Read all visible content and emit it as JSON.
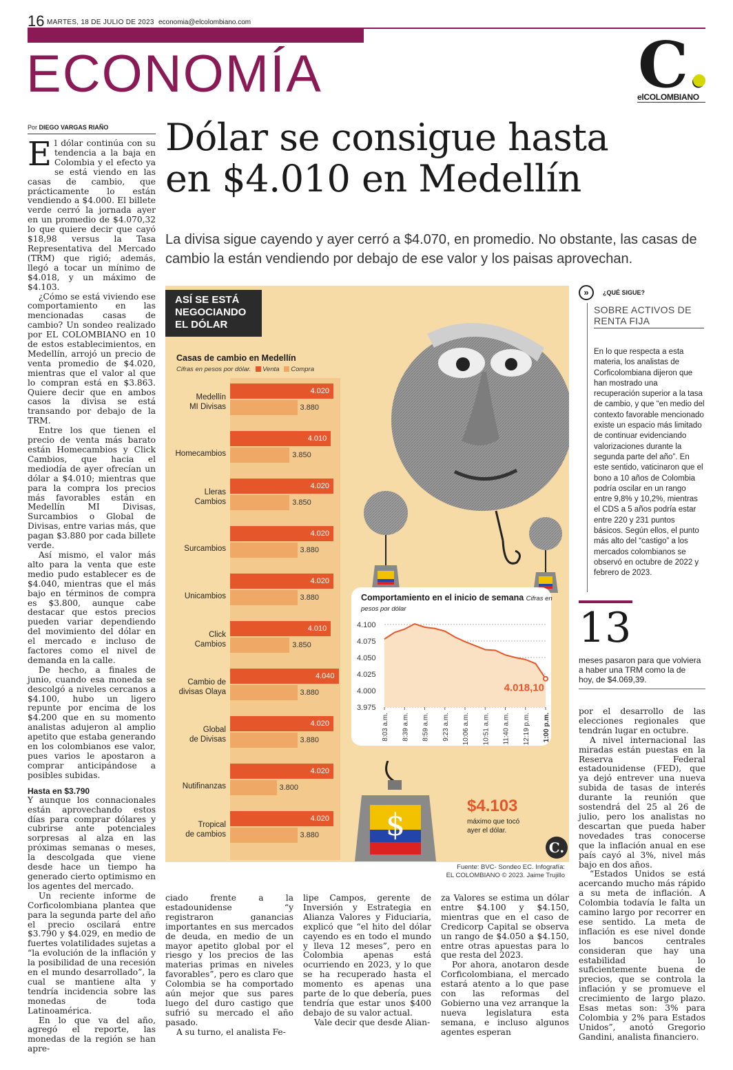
{
  "header": {
    "page_number": "16",
    "date": "MARTES, 18 DE JULIO DE 2023",
    "email": "economia@elcolombiano.com",
    "section": "ECONOMÍA",
    "logo_letter": "C.",
    "logo_text": "elCOLOMBIANO"
  },
  "article": {
    "byline_prefix": "Por",
    "byline_author": "DIEGO VARGAS RIAÑO",
    "headline_line1": "Dólar se consigue hasta",
    "headline_line2": "en $4.010 en Medellín",
    "deck": "La divisa sigue cayendo y ayer cerró a $4.070, en promedio. No obstante, las casas de cambio la están vendiendo por debajo de ese valor y los paisas aprovechan.",
    "col1_dropcap": "E",
    "col1_p1": "l dólar continúa con su tendencia a la baja en Colombia y el efecto ya se está viendo en las casas de cambio, que prácticamente lo están vendiendo a $4.000. El billete verde cerró la jornada ayer en un promedio de $4.070,32 lo que quiere decir que cayó $18,98 versus la Tasa Representativa del Mercado (TRM) que rigió; además, llegó a tocar un mínimo de $4.018, y un máximo de $4.103.",
    "col1_p2": "¿Cómo se está viviendo ese comportamiento en las mencionadas casas de cambio? Un sondeo realizado por EL COLOMBIANO en 10 de estos establecimientos, en Medellín, arrojó un precio de venta promedio de $4.020, mientras que el valor al que lo compran está en $3.863. Quiere decir que en ambos casos la divisa se está transando por debajo de la TRM.",
    "col1_p3": "Entre los que tienen el precio de venta más barato están Homecambios y Click Cambios, que hacia el mediodía de ayer ofrecían un dólar a $4.010; mientras que para la compra los precios más favorables están en Medellín MI Divisas, Surcambios o Global de Divisas, entre varias más, que pagan $3.880 por cada billete verde.",
    "col1_p4": "Así mismo, el valor más alto para la venta que este medio pudo establecer es de $4.040, mientras que el más bajo en términos de compra es $3.800, aunque cabe destacar que estos precios pueden variar dependiendo del movimiento del dólar en el mercado e incluso de factores como el nivel de demanda en la calle.",
    "col1_p5": "De hecho, a finales de junio, cuando esa moneda se descolgó a niveles cercanos a $4.100, hubo un ligero repunte por encima de los $4.200 que en su momento analistas adujeron al amplio apetito que estaba generando en los colombianos ese valor, pues varios le apostaron a comprar anticipándose a posibles subidas.",
    "subhead": "Hasta en $3.790",
    "col1_p6": "Y aunque los connacionales están aprovechando estos días para comprar dólares y cubrirse ante potenciales sorpresas al alza en las próximas semanas o meses, la descolgada que viene desde hace un tiempo ha generado cierto optimismo en los agentes del mercado.",
    "col1_p7": "Un reciente informe de Corficolombiana plantea que para la segunda parte del año el precio oscilará entre $3.790 y $4.029, en medio de fuertes volatilidades sujetas a “la evolución de la inflación y la posibilidad de una recesión en el mundo desarrollado”, la cual se mantiene alta y tendría incidencia sobre las monedas de toda Latinoamérica.",
    "col1_p8": "En lo que va del año, agregó el reporte, las monedas de la región se han apre-",
    "col2_p1": "ciado frente a la estadounidense “y registraron ganancias importantes en sus mercados de deuda, en medio de un mayor apetito global por el riesgo y los precios de las materias primas en niveles favorables”, pero es claro que Colombia se ha comportado aún mejor que sus pares luego del duro castigo que sufrió su mercado el año pasado.",
    "col2_p2": "A su turno, el analista Fe-",
    "col3_p1": "lipe Campos, gerente de Inversión y Estrategia en Alianza Valores y Fiduciaria, explicó que “el hito del dólar cayendo es en todo el mundo y lleva 12 meses”, pero en Colombia apenas está ocurriendo en 2023, y lo que se ha recuperado hasta el momento es apenas una parte de lo que debería, pues tendría que estar unos $400 debajo de su valor actual.",
    "col3_p2": "Vale decir que desde Alian-",
    "col4_p1": "za Valores se estima un dólar entre $4.100 y $4.150, mientras que en el caso de Credicorp Capital se observa un rango de $4.050 a $4.150, entre otras apuestas para lo que resta del 2023.",
    "col4_p2": "Por ahora, anotaron desde Corficolombiana, el mercado estará atento a lo que pase con las reformas del Gobierno una vez arranque la nueva legislatura esta semana, e incluso algunos agentes esperan",
    "col5_p1": "por el desarrollo de las elecciones regionales que tendrán lugar en octubre.",
    "col5_p2": "A nivel internacional las miradas están puestas en la Reserva Federal estadounidense (FED), que ya dejó entrever una nueva subida de tasas de interés durante la reunión que sostendrá del 25 al 26 de julio, pero los analistas no descartan que pueda haber novedades tras conocerse que la inflación anual en ese país cayó al 3%, nivel más bajo en dos años.",
    "col5_p3": "“Estados Unidos se está acercando mucho más rápido a su meta de inflación. A Colombia todavía le falta un camino largo por recorrer en ese sentido. La meta de inflación es ese nivel donde los bancos centrales consideran que hay una estabilidad lo suficientemente buena de precios, que se controla la inflación y se promueve el crecimiento de largo plazo. Esas metas son: 3% para Colombia y 2% para Estados Unidos”, anotó Gregorio Gandini, analista financiero."
  },
  "sidebar": {
    "label": "¿QUÉ SIGUE?",
    "title": "SOBRE ACTIVOS DE RENTA FIJA",
    "body": "En lo que respecta a esta materia, los analistas de Corficolombiana dijeron que han mostrado una recuperación superior a la tasa de cambio, y que “en medio del contexto favorable mencionado existe un espacio más limitado de continuar evidenciando valorizaciones durante la segunda parte del año”. En este sentido, vaticinaron que el bono a 10 años de Colombia podría oscilar en un rango entre 9,8% y 10,2%, mientras el CDS a 5 años podría estar entre 220 y 231 puntos básicos. Según ellos, el punto más alto del “castigo” a los mercados colombianos se observó en octubre de 2022 y febrero de 2023.",
    "big_number": "13",
    "big_number_text": "meses pasaron para que volviera a haber una TRM como la de hoy, de $4.069,39."
  },
  "infographic": {
    "banner": [
      "ASÍ SE ESTÁ",
      "NEGOCIANDO",
      "EL DÓLAR"
    ],
    "max_value": "$4.103",
    "max_label": [
      "máximo que tocó",
      "ayer el dólar."
    ],
    "badge": "C.",
    "source": [
      "Fuente: BVC- Sondeo EC. Infografía:",
      "EL COLOMBIANO © 2023. Jaime Trujillo"
    ],
    "colors": {
      "venta": "#e5572a",
      "compra": "#f0a866",
      "accent": "#8a1a55",
      "line": "#e5572a"
    }
  },
  "chart_data": [
    {
      "type": "bar",
      "title": "Casas de cambio en Medellín",
      "subtitle": "Cifras en pesos por dólar.",
      "legend": [
        "Venta",
        "Compra"
      ],
      "categories": [
        [
          "Medellín",
          "MI Divisas"
        ],
        [
          "Homecambios"
        ],
        [
          "Lleras",
          "Cambios"
        ],
        [
          "Surcambios"
        ],
        [
          "Unicambios"
        ],
        [
          "Click",
          "Cambios"
        ],
        [
          "Cambio de",
          "divisas Olaya"
        ],
        [
          "Global",
          "de Divisas"
        ],
        [
          "Nutifinanzas"
        ],
        [
          "Tropical",
          "de cambios"
        ]
      ],
      "series": [
        {
          "name": "Venta",
          "values": [
            4020,
            4010,
            4020,
            4020,
            4020,
            4010,
            4040,
            4020,
            4020,
            4020
          ],
          "labels": [
            "4.020",
            "4.010",
            "4.020",
            "4.020",
            "4.020",
            "4.010",
            "4.040",
            "4.020",
            "4.020",
            "4.020"
          ]
        },
        {
          "name": "Compra",
          "values": [
            3880,
            3850,
            3850,
            3880,
            3880,
            3850,
            3880,
            3880,
            3800,
            3880
          ],
          "labels": [
            "3.880",
            "3.850",
            "3.850",
            "3.880",
            "3.880",
            "3.850",
            "3.880",
            "3.880",
            "3.800",
            "3.880"
          ]
        }
      ]
    },
    {
      "type": "line",
      "title": "Comportamiento en el inicio de semana",
      "subtitle": "Cifras en pesos por dólar",
      "ylim": [
        3975,
        4100
      ],
      "yticks": [
        "4.100",
        "4.075",
        "4.050",
        "4.025",
        "4.000",
        "3.975"
      ],
      "xticks": [
        "8:03 a.m.",
        "8:39 a.m.",
        "8:59 a.m.",
        "9:23 a.m.",
        "10:06 a.m.",
        "10:51 a.m.",
        "11:40 a.m.",
        "12:19 p.m.",
        "1:00 p.m."
      ],
      "x": [
        0,
        0.5,
        1,
        1.5,
        2,
        2.5,
        3,
        3.5,
        4,
        4.5,
        5,
        5.5,
        6,
        6.5,
        7,
        7.5,
        8
      ],
      "y": [
        4078,
        4088,
        4093,
        4101,
        4096,
        4094,
        4090,
        4081,
        4074,
        4068,
        4062,
        4061,
        4054,
        4050,
        4047,
        4041,
        4018
      ],
      "end_label": "4.018,10"
    }
  ]
}
